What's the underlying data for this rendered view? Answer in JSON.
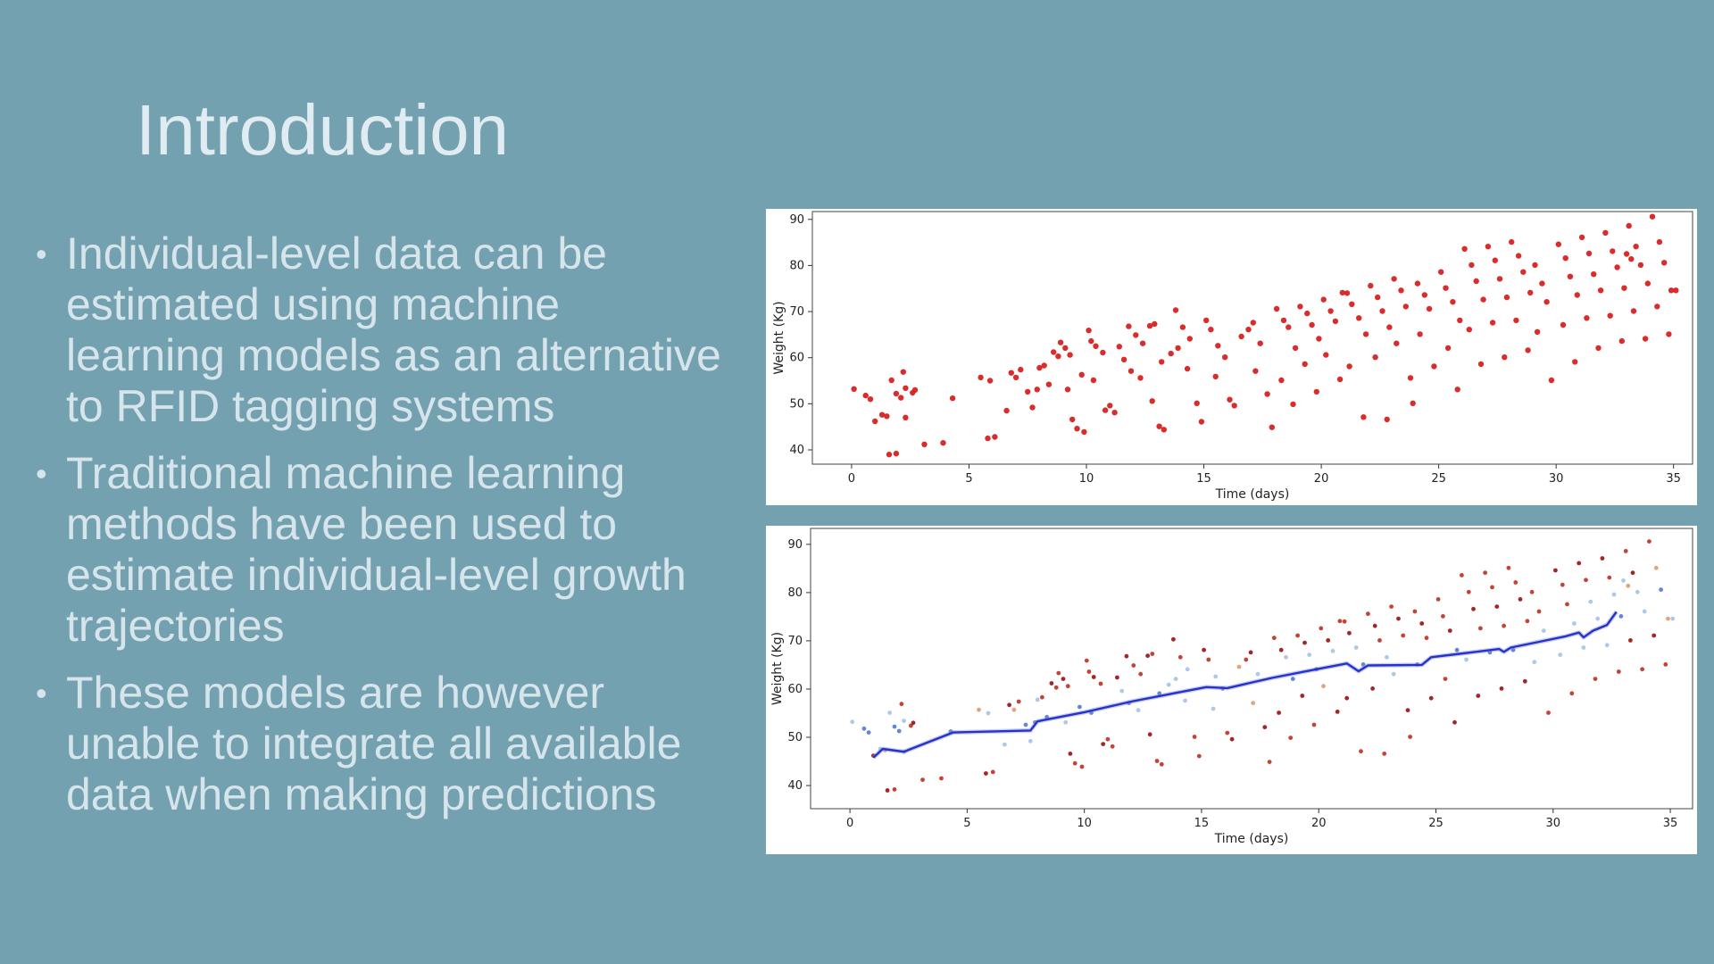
{
  "slide": {
    "title": "Introduction",
    "bullet_char": "•",
    "bullets": [
      "Individual-level data can be\nestimated using machine\nlearning models as an alternative\nto RFID tagging systems",
      "Traditional machine learning\nmethods have been used to\nestimate individual-level growth\ntrajectories",
      "These models are however\nunable to integrate all available\ndata when making predictions"
    ],
    "background_color": "#74a1b0",
    "title_color": "#e0ecf1",
    "text_color": "#d6e5eb"
  },
  "chart_data": [
    {
      "type": "scatter",
      "title": "",
      "xlabel": "Time (days)",
      "ylabel": "Weight (Kg)",
      "xticks": [
        0,
        5,
        10,
        15,
        20,
        25,
        30,
        35
      ],
      "yticks": [
        40,
        50,
        60,
        70,
        80,
        90
      ],
      "xlim": [
        -1.67,
        35.81
      ],
      "ylim": [
        36.9,
        91.7
      ],
      "grid": false,
      "legend": "none",
      "point_color": "#d92121",
      "points": [
        [
          0.1,
          53.2
        ],
        [
          0.6,
          51.8
        ],
        [
          0.8,
          51.0
        ],
        [
          1.0,
          46.2
        ],
        [
          1.3,
          47.6
        ],
        [
          1.5,
          47.3
        ],
        [
          1.6,
          39.0
        ],
        [
          1.9,
          39.2
        ],
        [
          1.7,
          55.1
        ],
        [
          1.9,
          52.2
        ],
        [
          2.1,
          51.3
        ],
        [
          2.2,
          56.9
        ],
        [
          2.3,
          53.4
        ],
        [
          2.6,
          52.4
        ],
        [
          2.3,
          47.0
        ],
        [
          2.7,
          53.0
        ],
        [
          3.1,
          41.2
        ],
        [
          3.9,
          41.5
        ],
        [
          4.3,
          51.2
        ],
        [
          5.5,
          55.7
        ],
        [
          5.9,
          55.0
        ],
        [
          5.8,
          42.5
        ],
        [
          6.1,
          42.8
        ],
        [
          6.6,
          48.5
        ],
        [
          6.8,
          56.7
        ],
        [
          7.0,
          55.7
        ],
        [
          7.2,
          57.4
        ],
        [
          7.5,
          52.6
        ],
        [
          7.7,
          49.2
        ],
        [
          7.9,
          53.1
        ],
        [
          8.0,
          57.8
        ],
        [
          8.2,
          58.3
        ],
        [
          8.4,
          54.2
        ],
        [
          8.6,
          61.2
        ],
        [
          8.8,
          60.3
        ],
        [
          8.9,
          63.3
        ],
        [
          9.1,
          62.1
        ],
        [
          9.3,
          60.6
        ],
        [
          9.2,
          53.1
        ],
        [
          9.4,
          46.6
        ],
        [
          9.6,
          44.6
        ],
        [
          9.9,
          43.9
        ],
        [
          9.8,
          56.3
        ],
        [
          10.1,
          65.9
        ],
        [
          10.2,
          63.6
        ],
        [
          10.4,
          62.5
        ],
        [
          10.7,
          61.1
        ],
        [
          10.3,
          55.1
        ],
        [
          10.8,
          48.6
        ],
        [
          11.0,
          49.6
        ],
        [
          11.2,
          48.1
        ],
        [
          11.4,
          62.4
        ],
        [
          11.6,
          59.6
        ],
        [
          11.9,
          57.1
        ],
        [
          11.8,
          66.8
        ],
        [
          12.1,
          64.9
        ],
        [
          12.4,
          63.1
        ],
        [
          12.7,
          66.9
        ],
        [
          12.9,
          67.3
        ],
        [
          12.3,
          55.6
        ],
        [
          12.8,
          50.6
        ],
        [
          13.1,
          45.1
        ],
        [
          13.3,
          44.4
        ],
        [
          13.2,
          59.1
        ],
        [
          13.6,
          60.9
        ],
        [
          13.9,
          62.1
        ],
        [
          13.8,
          70.3
        ],
        [
          14.1,
          66.6
        ],
        [
          14.4,
          64.1
        ],
        [
          14.3,
          57.6
        ],
        [
          14.7,
          50.1
        ],
        [
          14.9,
          46.1
        ],
        [
          15.1,
          68.1
        ],
        [
          15.3,
          66.1
        ],
        [
          15.6,
          62.6
        ],
        [
          15.9,
          60.1
        ],
        [
          15.5,
          55.9
        ],
        [
          16.1,
          50.9
        ],
        [
          16.3,
          49.6
        ],
        [
          16.6,
          64.6
        ],
        [
          16.9,
          66.1
        ],
        [
          17.1,
          67.6
        ],
        [
          17.4,
          63.1
        ],
        [
          17.2,
          57.1
        ],
        [
          17.7,
          52.1
        ],
        [
          17.9,
          44.9
        ],
        [
          18.1,
          70.6
        ],
        [
          18.4,
          68.1
        ],
        [
          18.6,
          66.6
        ],
        [
          18.9,
          62.1
        ],
        [
          18.3,
          55.1
        ],
        [
          18.8,
          49.9
        ],
        [
          19.1,
          71.1
        ],
        [
          19.4,
          69.6
        ],
        [
          19.6,
          67.1
        ],
        [
          19.9,
          64.1
        ],
        [
          19.3,
          58.6
        ],
        [
          19.8,
          52.6
        ],
        [
          20.1,
          72.6
        ],
        [
          20.4,
          70.1
        ],
        [
          20.6,
          67.9
        ],
        [
          20.2,
          60.6
        ],
        [
          20.8,
          55.3
        ],
        [
          20.9,
          74.1
        ],
        [
          21.1,
          74.0
        ],
        [
          21.3,
          71.6
        ],
        [
          21.6,
          68.6
        ],
        [
          21.9,
          65.1
        ],
        [
          21.2,
          58.1
        ],
        [
          21.8,
          47.1
        ],
        [
          22.1,
          75.6
        ],
        [
          22.4,
          73.1
        ],
        [
          22.6,
          70.1
        ],
        [
          22.9,
          66.6
        ],
        [
          22.3,
          60.1
        ],
        [
          22.8,
          46.6
        ],
        [
          23.1,
          77.1
        ],
        [
          23.4,
          74.6
        ],
        [
          23.6,
          71.1
        ],
        [
          23.2,
          63.1
        ],
        [
          23.8,
          55.6
        ],
        [
          23.9,
          50.1
        ],
        [
          24.1,
          76.1
        ],
        [
          24.4,
          73.6
        ],
        [
          24.6,
          70.6
        ],
        [
          24.2,
          65.1
        ],
        [
          24.8,
          58.1
        ],
        [
          25.1,
          78.6
        ],
        [
          25.3,
          75.1
        ],
        [
          25.6,
          72.1
        ],
        [
          25.9,
          68.1
        ],
        [
          25.4,
          62.1
        ],
        [
          25.8,
          53.1
        ],
        [
          26.1,
          83.6
        ],
        [
          26.4,
          80.1
        ],
        [
          26.6,
          76.6
        ],
        [
          26.9,
          72.6
        ],
        [
          26.3,
          66.1
        ],
        [
          26.8,
          58.6
        ],
        [
          27.1,
          84.1
        ],
        [
          27.4,
          81.1
        ],
        [
          27.6,
          77.1
        ],
        [
          27.9,
          73.1
        ],
        [
          27.3,
          67.6
        ],
        [
          27.8,
          60.1
        ],
        [
          28.1,
          85.1
        ],
        [
          28.4,
          82.1
        ],
        [
          28.6,
          78.6
        ],
        [
          28.9,
          74.1
        ],
        [
          28.3,
          68.1
        ],
        [
          28.8,
          61.6
        ],
        [
          29.1,
          80.1
        ],
        [
          29.4,
          76.1
        ],
        [
          29.6,
          72.1
        ],
        [
          29.2,
          65.6
        ],
        [
          29.8,
          55.1
        ],
        [
          30.1,
          84.6
        ],
        [
          30.4,
          81.6
        ],
        [
          30.6,
          77.6
        ],
        [
          30.9,
          73.6
        ],
        [
          30.3,
          67.1
        ],
        [
          30.8,
          59.1
        ],
        [
          31.1,
          86.1
        ],
        [
          31.4,
          82.6
        ],
        [
          31.6,
          78.1
        ],
        [
          31.9,
          74.6
        ],
        [
          31.3,
          68.6
        ],
        [
          31.8,
          62.1
        ],
        [
          32.1,
          87.1
        ],
        [
          32.4,
          83.1
        ],
        [
          32.6,
          79.6
        ],
        [
          32.9,
          75.1
        ],
        [
          32.3,
          69.1
        ],
        [
          32.8,
          63.6
        ],
        [
          33.0,
          82.5
        ],
        [
          33.2,
          81.4
        ],
        [
          33.1,
          88.6
        ],
        [
          33.4,
          84.1
        ],
        [
          33.6,
          80.1
        ],
        [
          33.9,
          76.1
        ],
        [
          33.3,
          70.1
        ],
        [
          33.8,
          64.1
        ],
        [
          34.1,
          90.6
        ],
        [
          34.4,
          85.1
        ],
        [
          34.6,
          80.6
        ],
        [
          34.9,
          74.6
        ],
        [
          34.3,
          71.1
        ],
        [
          34.8,
          65.1
        ],
        [
          35.1,
          74.6
        ]
      ]
    },
    {
      "type": "scatter+line",
      "title": "",
      "xlabel": "Time (days)",
      "ylabel": "Weight (Kg)",
      "xticks": [
        0,
        5,
        10,
        15,
        20,
        25,
        30,
        35
      ],
      "yticks": [
        40,
        50,
        60,
        70,
        80,
        90
      ],
      "xlim": [
        -1.68,
        35.95
      ],
      "ylim": [
        35.2,
        93.3
      ],
      "grid": false,
      "legend": "none",
      "points_same_as_first_chart": true,
      "line_color": "#2633c9",
      "line_glow_color": "#8890e8",
      "palette": {
        "on_line": "#5b7fd4",
        "near_blue": "#a9c6e8",
        "mid_tan": "#dfa077",
        "far_dark_red": "#9e1a1a",
        "far_red": "#c0392b"
      },
      "color_rule": {
        "near_threshold_kg": 4.6,
        "near_threshold_after_day30_kg": 6.5,
        "on_line_threshold_kg": 1.3,
        "blue_threshold_kg": 3.1
      },
      "line": [
        [
          1.0,
          45.8
        ],
        [
          1.4,
          47.6
        ],
        [
          2.3,
          47.0
        ],
        [
          4.4,
          51.0
        ],
        [
          7.7,
          51.4
        ],
        [
          8.0,
          53.3
        ],
        [
          8.3,
          53.6
        ],
        [
          10.0,
          55.2
        ],
        [
          12.0,
          57.4
        ],
        [
          14.0,
          59.3
        ],
        [
          15.2,
          60.4
        ],
        [
          16.1,
          60.2
        ],
        [
          18.0,
          62.3
        ],
        [
          20.0,
          64.2
        ],
        [
          21.2,
          65.3
        ],
        [
          21.7,
          63.7
        ],
        [
          22.1,
          64.9
        ],
        [
          24.4,
          65.0
        ],
        [
          24.8,
          66.6
        ],
        [
          26.0,
          67.3
        ],
        [
          27.7,
          68.3
        ],
        [
          27.9,
          67.7
        ],
        [
          28.2,
          68.6
        ],
        [
          29.5,
          69.9
        ],
        [
          30.5,
          70.9
        ],
        [
          31.1,
          71.7
        ],
        [
          31.3,
          70.7
        ],
        [
          31.7,
          72.1
        ],
        [
          32.3,
          73.3
        ],
        [
          32.7,
          76.0
        ]
      ]
    }
  ]
}
